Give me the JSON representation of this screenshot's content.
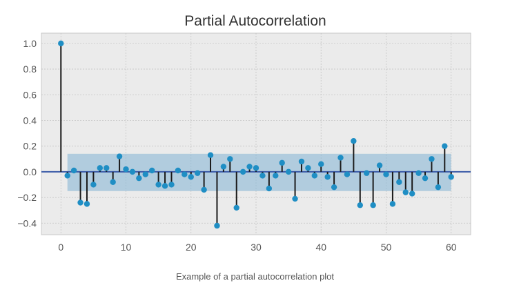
{
  "caption": "Example of a partial autocorrelation plot",
  "colors": {
    "background": "#ebebeb",
    "marker": "#1f8ec4",
    "stem": "#1a1a1a",
    "zero_line": "#3a5aa8",
    "confidence_band": "#8ab8d6"
  },
  "chart_data": {
    "type": "scatter",
    "title": "Partial Autocorrelation",
    "xlabel": "",
    "ylabel": "",
    "xlim": [
      -3,
      63
    ],
    "ylim": [
      -0.49,
      1.08
    ],
    "grid": true,
    "legend": "none",
    "xticks": [
      0,
      10,
      20,
      30,
      40,
      50,
      60
    ],
    "yticks": [
      1.0,
      0.8,
      0.6,
      0.4,
      0.2,
      0.0,
      -0.2,
      -0.4
    ],
    "x_tick_labels": [
      "0",
      "10",
      "20",
      "30",
      "40",
      "50",
      "60"
    ],
    "y_tick_labels": [
      "1.0",
      "0.8",
      "0.6",
      "0.4",
      "0.2",
      "0.0",
      "−0.2",
      "−0.4"
    ],
    "confidence_interval": {
      "x_start": 1,
      "x_end": 60,
      "lower": -0.15,
      "upper": 0.14
    },
    "x": [
      0,
      1,
      2,
      3,
      4,
      5,
      6,
      7,
      8,
      9,
      10,
      11,
      12,
      13,
      14,
      15,
      16,
      17,
      18,
      19,
      20,
      21,
      22,
      23,
      24,
      25,
      26,
      27,
      28,
      29,
      30,
      31,
      32,
      33,
      34,
      35,
      36,
      37,
      38,
      39,
      40,
      41,
      42,
      43,
      44,
      45,
      46,
      47,
      48,
      49,
      50,
      51,
      52,
      53,
      54,
      55,
      56,
      57,
      58,
      59,
      60
    ],
    "values": [
      1.0,
      -0.03,
      0.01,
      -0.24,
      -0.25,
      -0.1,
      0.03,
      0.03,
      -0.08,
      0.12,
      0.02,
      0.0,
      -0.05,
      -0.02,
      0.01,
      -0.1,
      -0.11,
      -0.1,
      0.01,
      -0.02,
      -0.04,
      -0.01,
      -0.14,
      0.13,
      -0.42,
      0.04,
      0.1,
      -0.28,
      0.0,
      0.04,
      0.03,
      -0.03,
      -0.13,
      -0.03,
      0.07,
      0.0,
      -0.21,
      0.08,
      0.03,
      -0.03,
      0.06,
      -0.04,
      -0.12,
      0.11,
      -0.02,
      0.24,
      -0.26,
      -0.01,
      -0.26,
      0.05,
      -0.02,
      -0.25,
      -0.08,
      -0.16,
      -0.17,
      -0.01,
      -0.05,
      0.1,
      -0.12,
      0.2,
      -0.04
    ]
  }
}
